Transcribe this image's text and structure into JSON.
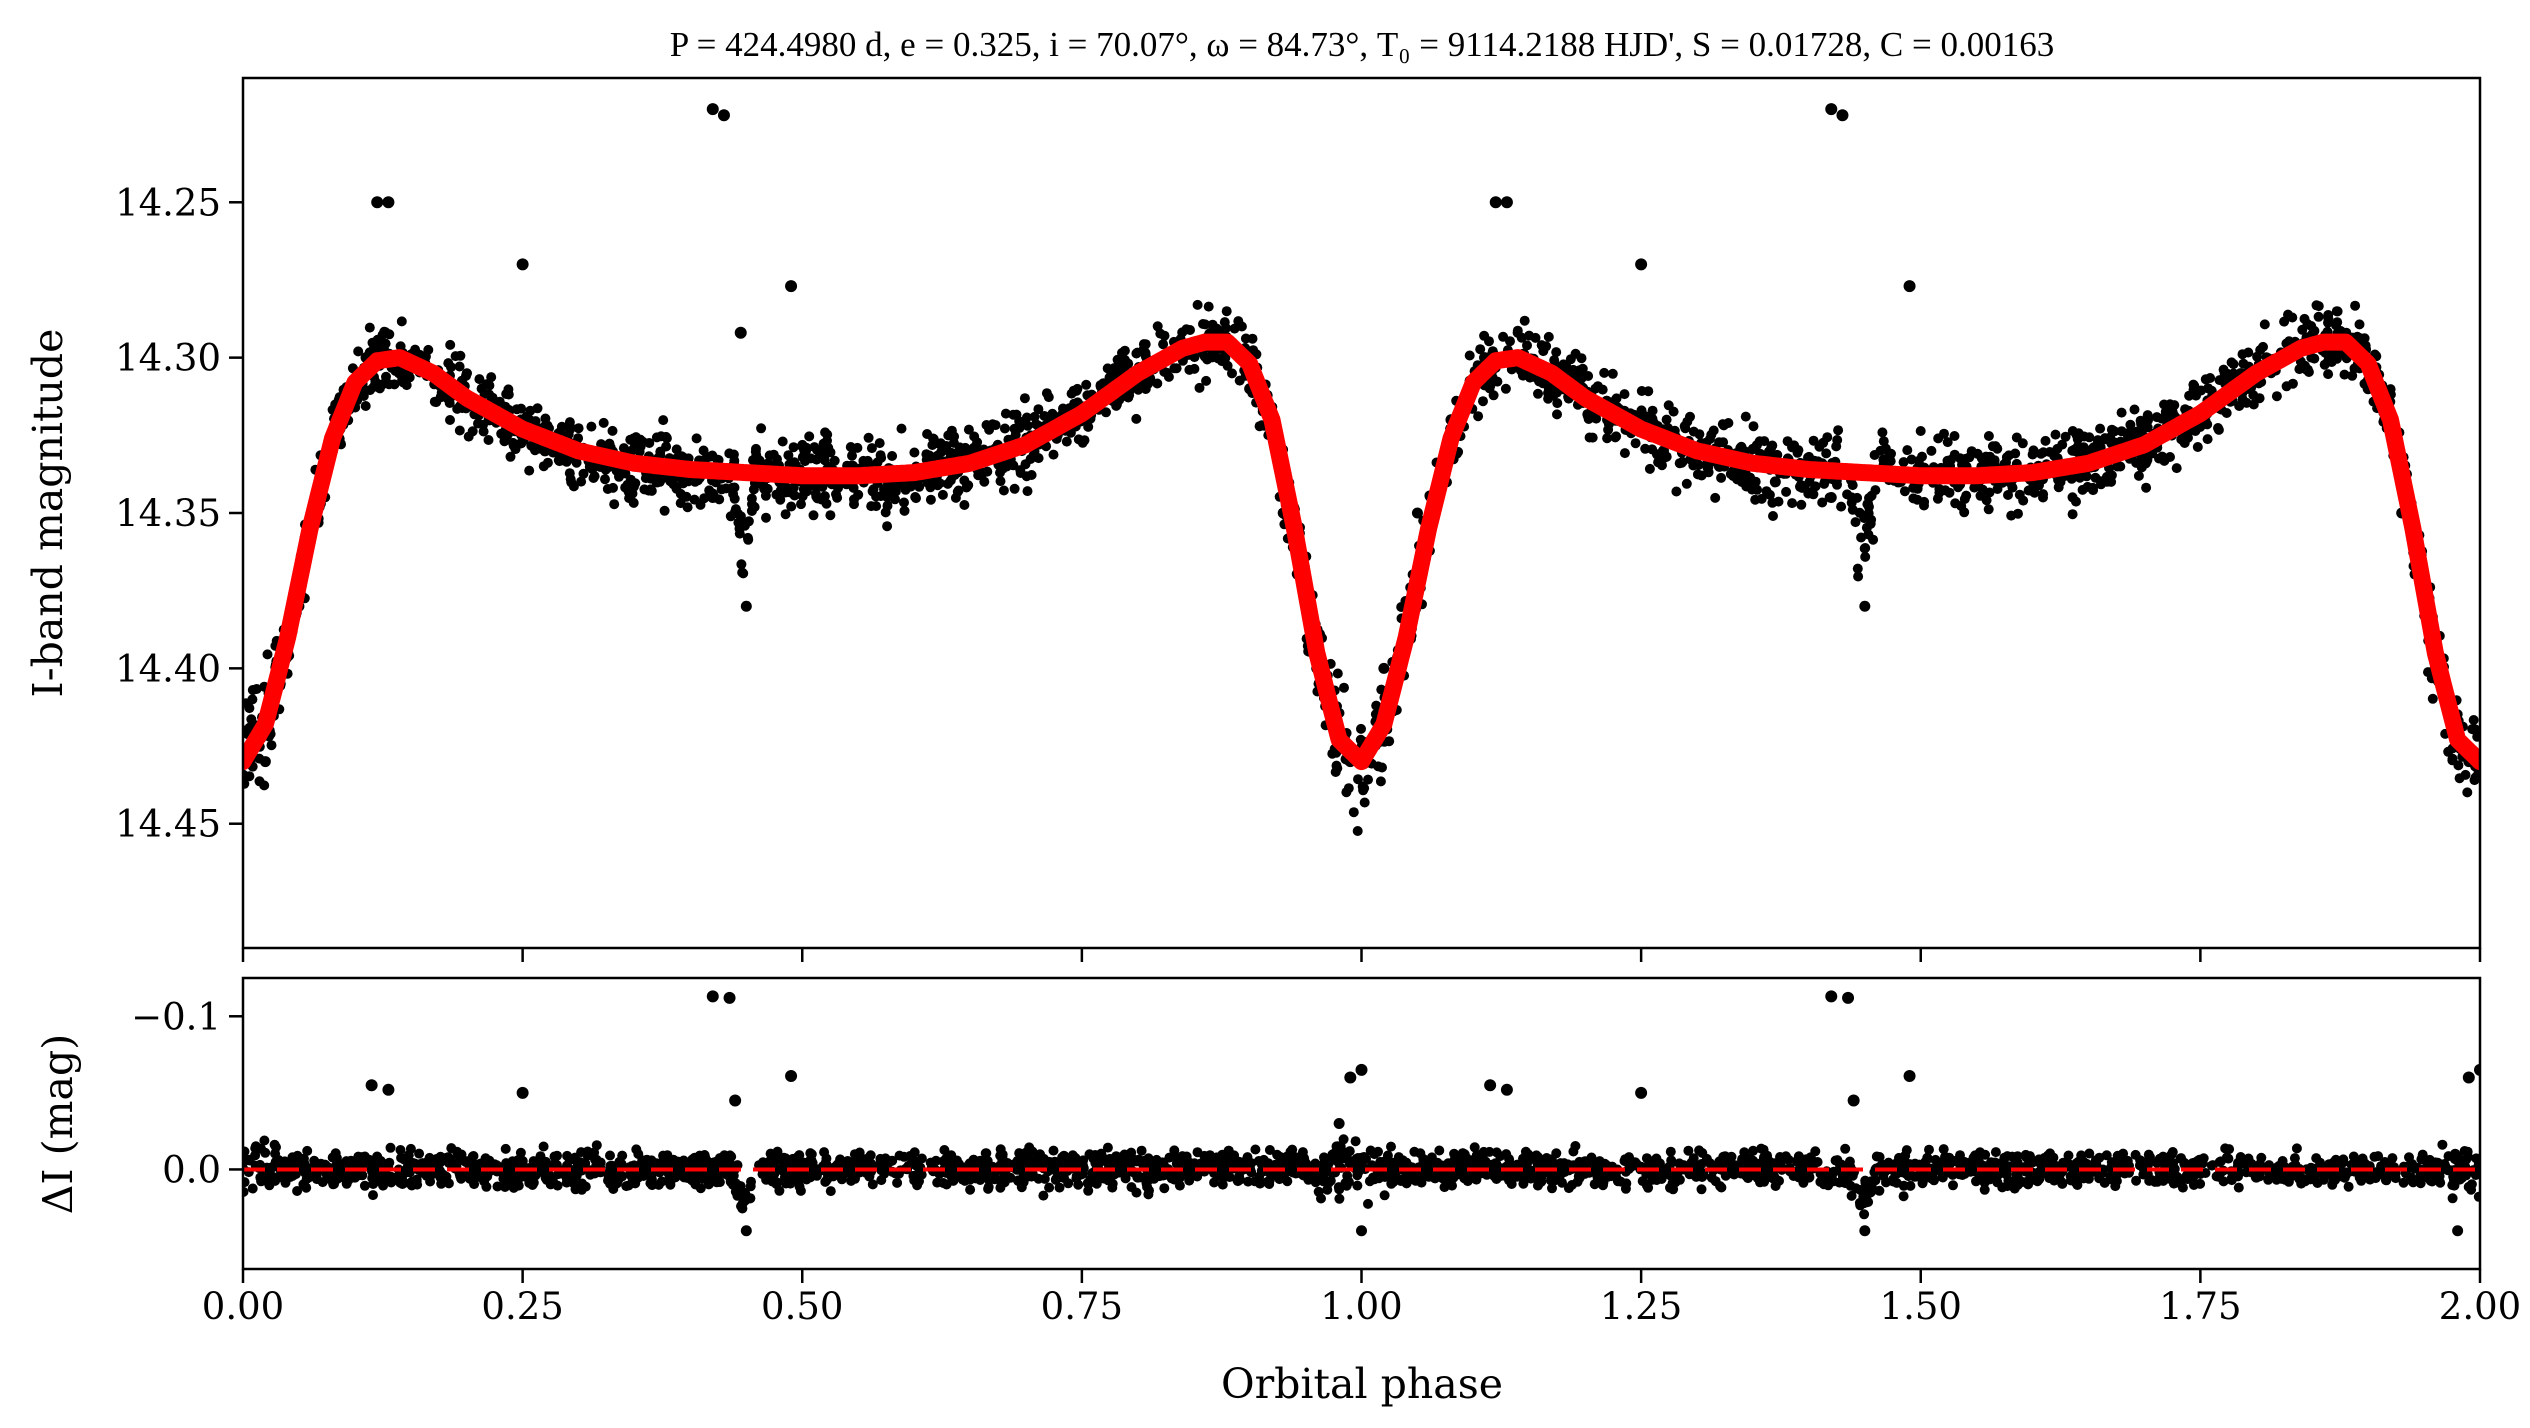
{
  "chart_data": [
    {
      "panel": "top",
      "type": "scatter",
      "title": "P = 424.4980 d, e = 0.325, i = 70.07°, ω = 84.73°, T₀ = 9114.2188 HJD', S = 0.01728, C = 0.00163",
      "ylabel": "I-band magnitude",
      "xlabel": "",
      "xlim": [
        0.0,
        2.0
      ],
      "ylim": [
        14.49,
        14.21
      ],
      "y_inverted": true,
      "yticks": [
        14.25,
        14.3,
        14.35,
        14.4,
        14.45
      ],
      "ytick_labels": [
        "14.25",
        "14.30",
        "14.35",
        "14.40",
        "14.45"
      ],
      "xticks": [
        0.0,
        0.25,
        0.5,
        0.75,
        1.0,
        1.25,
        1.5,
        1.75,
        2.0
      ],
      "grid": false,
      "series": [
        {
          "kind": "points",
          "color": "#000000",
          "x": [
            0.02,
            0.05,
            0.08,
            0.11,
            0.14,
            0.18,
            0.22,
            0.27,
            0.32,
            0.37,
            0.42,
            0.45,
            0.48,
            0.53,
            0.58,
            0.63,
            0.68,
            0.73,
            0.78,
            0.83,
            0.87,
            0.9,
            0.93,
            0.96,
            0.99,
            1.02,
            1.05,
            1.08,
            1.11,
            1.14,
            1.18,
            1.22,
            1.27,
            1.32,
            1.37,
            1.42,
            1.45,
            1.48,
            1.53,
            1.58,
            1.63,
            1.68,
            1.73,
            1.78,
            1.83,
            1.87,
            1.9,
            1.93,
            1.96,
            1.99
          ],
          "y": [
            14.43,
            14.38,
            14.33,
            14.3,
            14.3,
            14.31,
            14.32,
            14.33,
            14.335,
            14.34,
            14.345,
            14.38,
            14.34,
            14.34,
            14.34,
            14.335,
            14.33,
            14.32,
            14.31,
            14.3,
            14.295,
            14.31,
            14.35,
            14.4,
            14.43,
            14.4,
            14.35,
            14.32,
            14.3,
            14.3,
            14.31,
            14.32,
            14.33,
            14.335,
            14.34,
            14.345,
            14.38,
            14.34,
            14.34,
            14.34,
            14.335,
            14.33,
            14.32,
            14.31,
            14.3,
            14.295,
            14.31,
            14.35,
            14.4,
            14.43
          ]
        },
        {
          "kind": "outliers",
          "color": "#000000",
          "x": [
            0.12,
            0.13,
            0.25,
            0.42,
            0.43,
            0.445,
            0.49,
            1.12,
            1.13,
            1.25,
            1.42,
            1.43,
            1.49
          ],
          "y": [
            14.25,
            14.25,
            14.27,
            14.22,
            14.222,
            14.292,
            14.277,
            14.25,
            14.25,
            14.27,
            14.22,
            14.222,
            14.277
          ]
        },
        {
          "kind": "model",
          "color": "#ff0000",
          "x": [
            0.0,
            0.02,
            0.04,
            0.06,
            0.08,
            0.1,
            0.12,
            0.14,
            0.17,
            0.2,
            0.25,
            0.3,
            0.35,
            0.4,
            0.45,
            0.5,
            0.55,
            0.6,
            0.65,
            0.7,
            0.75,
            0.8,
            0.84,
            0.86,
            0.88,
            0.9,
            0.92,
            0.94,
            0.96,
            0.98,
            1.0,
            1.02,
            1.04,
            1.06,
            1.08,
            1.1,
            1.12,
            1.14,
            1.17,
            1.2,
            1.25,
            1.3,
            1.35,
            1.4,
            1.45,
            1.5,
            1.55,
            1.6,
            1.65,
            1.7,
            1.75,
            1.8,
            1.84,
            1.86,
            1.88,
            1.9,
            1.92,
            1.94,
            1.96,
            1.98,
            2.0
          ],
          "y": [
            14.43,
            14.418,
            14.39,
            14.355,
            14.326,
            14.308,
            14.301,
            14.3,
            14.305,
            14.313,
            14.323,
            14.33,
            14.334,
            14.336,
            14.337,
            14.338,
            14.338,
            14.337,
            14.334,
            14.328,
            14.318,
            14.305,
            14.297,
            14.295,
            14.295,
            14.302,
            14.32,
            14.355,
            14.395,
            14.423,
            14.43,
            14.418,
            14.39,
            14.355,
            14.326,
            14.308,
            14.301,
            14.3,
            14.305,
            14.313,
            14.323,
            14.33,
            14.334,
            14.336,
            14.337,
            14.338,
            14.338,
            14.337,
            14.334,
            14.328,
            14.318,
            14.305,
            14.297,
            14.295,
            14.295,
            14.302,
            14.32,
            14.355,
            14.395,
            14.423,
            14.43
          ]
        }
      ]
    },
    {
      "panel": "bottom",
      "type": "scatter",
      "xlabel": "Orbital phase",
      "ylabel": "ΔI (mag)",
      "xlim": [
        0.0,
        2.0
      ],
      "ylim": [
        0.065,
        -0.125
      ],
      "y_inverted": true,
      "yticks": [
        -0.1,
        0.0
      ],
      "ytick_labels": [
        "−0.1",
        "0.0"
      ],
      "xticks": [
        0.0,
        0.25,
        0.5,
        0.75,
        1.0,
        1.25,
        1.5,
        1.75,
        2.0
      ],
      "xtick_labels": [
        "0.00",
        "0.25",
        "0.50",
        "0.75",
        "1.00",
        "1.25",
        "1.50",
        "1.75",
        "2.00"
      ],
      "grid": false,
      "series": [
        {
          "kind": "residuals",
          "color": "#000000",
          "x": [
            0.02,
            0.1,
            0.2,
            0.3,
            0.4,
            0.45,
            0.5,
            0.6,
            0.7,
            0.8,
            0.9,
            0.98,
            1.0,
            1.02,
            1.1,
            1.2,
            1.3,
            1.4,
            1.45,
            1.5,
            1.6,
            1.7,
            1.8,
            1.9,
            1.98
          ],
          "y": [
            0.0,
            0.005,
            -0.005,
            0.0,
            0.005,
            0.04,
            0.0,
            -0.005,
            0.0,
            0.005,
            0.0,
            -0.03,
            0.04,
            0.0,
            0.005,
            -0.005,
            0.0,
            0.005,
            0.04,
            0.0,
            -0.005,
            0.0,
            0.005,
            0.0,
            0.04
          ]
        },
        {
          "kind": "outliers",
          "color": "#000000",
          "x": [
            0.115,
            0.13,
            0.25,
            0.42,
            0.435,
            0.44,
            0.49,
            0.99,
            1.0,
            1.115,
            1.13,
            1.25,
            1.42,
            1.435,
            1.44,
            1.49,
            1.99,
            2.0
          ],
          "y": [
            -0.055,
            -0.052,
            -0.05,
            -0.113,
            -0.112,
            -0.045,
            -0.061,
            -0.06,
            -0.065,
            -0.055,
            -0.052,
            -0.05,
            -0.113,
            -0.112,
            -0.045,
            -0.061,
            -0.06,
            -0.065
          ]
        },
        {
          "kind": "zero-line",
          "color": "#ff0000",
          "y": 0.0
        }
      ]
    }
  ]
}
